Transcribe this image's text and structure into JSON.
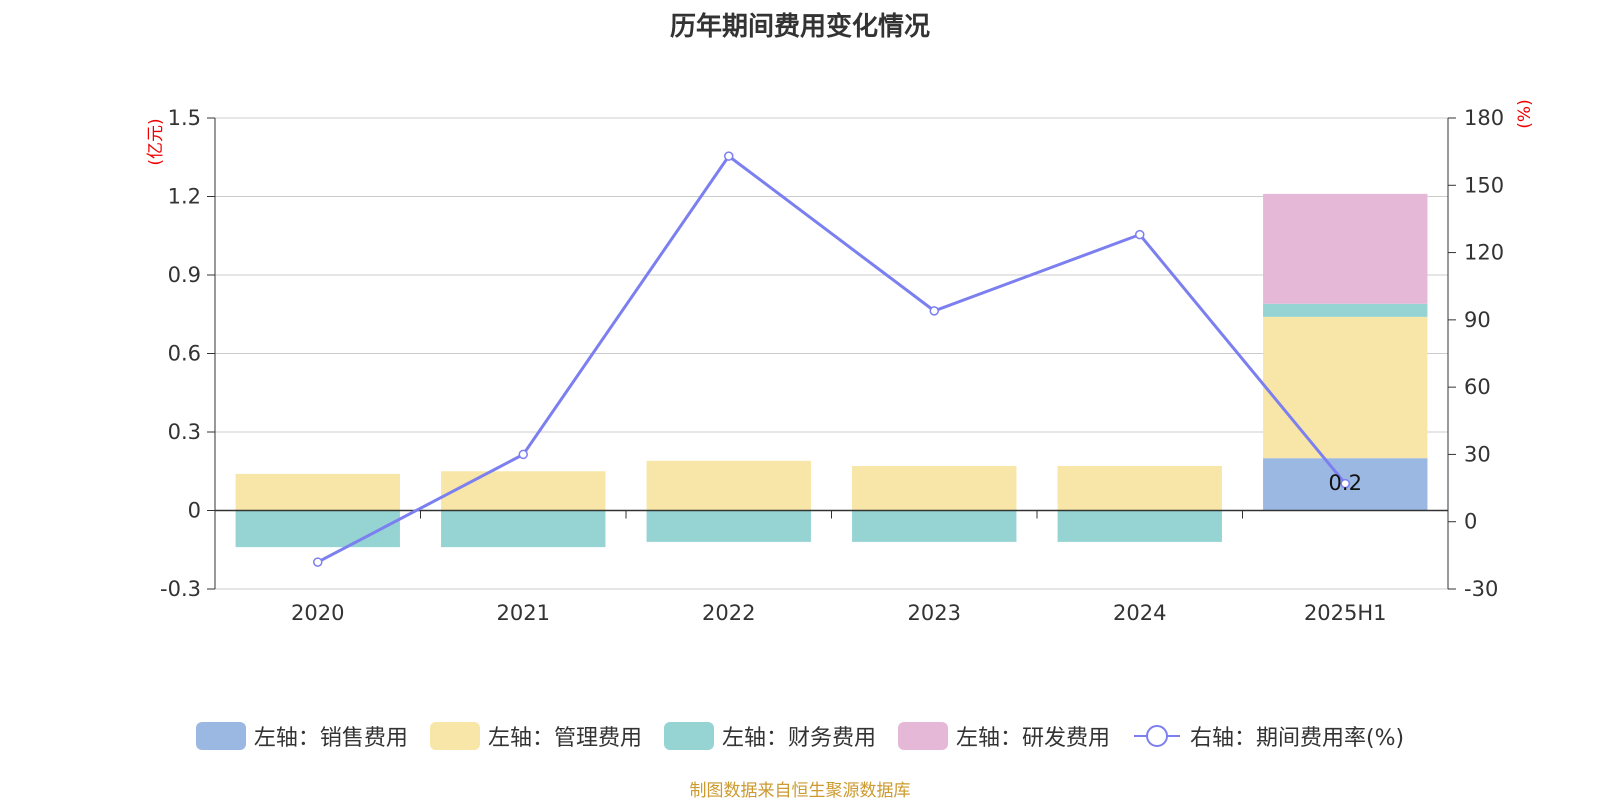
{
  "chart_data": {
    "type": "bar",
    "title": "历年期间费用变化情况",
    "categories": [
      "2020",
      "2021",
      "2022",
      "2023",
      "2024",
      "2025H1"
    ],
    "left_axis": {
      "unit": "(亿元)",
      "ylim": [
        -0.3,
        1.5
      ],
      "ticks": [
        "-0.3",
        "0",
        "0.3",
        "0.6",
        "0.9",
        "1.2",
        "1.5"
      ]
    },
    "right_axis": {
      "unit": "(%)",
      "ylim": [
        -30,
        180
      ],
      "ticks": [
        "-30",
        "0",
        "30",
        "60",
        "90",
        "120",
        "150",
        "180"
      ]
    },
    "stacked": true,
    "series": [
      {
        "name": "左轴：销售费用",
        "axis": "left",
        "color": "#9bb8e3",
        "values": [
          0,
          0,
          0,
          0,
          0,
          0.2
        ]
      },
      {
        "name": "左轴：管理费用",
        "axis": "left",
        "color": "#f7e6a7",
        "values": [
          0.14,
          0.15,
          0.19,
          0.17,
          0.17,
          0.54
        ]
      },
      {
        "name": "左轴：财务费用",
        "axis": "left",
        "color": "#96d4d4",
        "values": [
          -0.14,
          -0.14,
          -0.12,
          -0.12,
          -0.12,
          0.05
        ]
      },
      {
        "name": "左轴：研发费用",
        "axis": "left",
        "color": "#e6b8d8",
        "values": [
          0,
          0,
          0,
          0,
          0,
          0.42
        ]
      },
      {
        "name": "右轴：期间费用率(%)",
        "axis": "right",
        "type": "line",
        "color": "#7b7fef",
        "values": [
          -18,
          30,
          163,
          94,
          128,
          17
        ]
      }
    ],
    "data_labels": [
      {
        "category": "2025H1",
        "text": "0.2"
      }
    ]
  },
  "source": "制图数据来自恒生聚源数据库"
}
